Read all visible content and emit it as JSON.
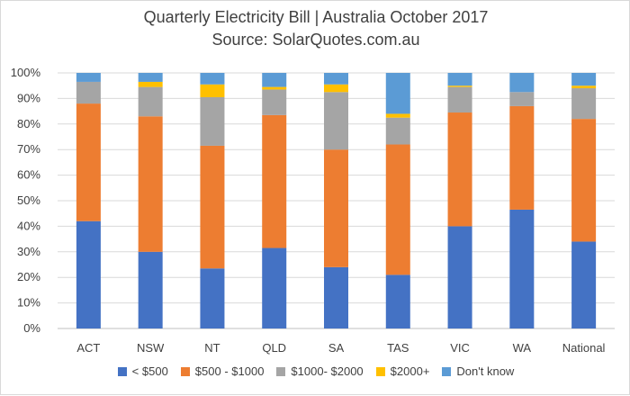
{
  "chart_data": {
    "type": "bar",
    "stacked": true,
    "title": "Quarterly Electricity Bill | Australia October 2017",
    "subtitle": "Source: SolarQuotes.com.au",
    "categories": [
      "ACT",
      "NSW",
      "NT",
      "QLD",
      "SA",
      "TAS",
      "VIC",
      "WA",
      "National"
    ],
    "ylim": [
      0,
      100
    ],
    "yticks": [
      "0%",
      "10%",
      "20%",
      "30%",
      "40%",
      "50%",
      "60%",
      "70%",
      "80%",
      "90%",
      "100%"
    ],
    "grid": true,
    "legend_position": "bottom",
    "series": [
      {
        "name": "< $500",
        "color": "#4472C4",
        "values": [
          42,
          30,
          23.5,
          31.5,
          24,
          21,
          40,
          46.5,
          34
        ]
      },
      {
        "name": "$500 - $1000",
        "color": "#ED7D31",
        "values": [
          46,
          53,
          48,
          52,
          46,
          51,
          44.5,
          40.5,
          48
        ]
      },
      {
        "name": "$1000- $2000",
        "color": "#A5A5A5",
        "values": [
          8.5,
          11.5,
          19,
          10,
          22.5,
          10.5,
          10,
          5.5,
          12
        ]
      },
      {
        "name": "$2000+",
        "color": "#FFC000",
        "values": [
          0,
          2,
          5,
          1,
          3,
          1.5,
          0.5,
          0,
          1
        ]
      },
      {
        "name": "Don't know",
        "color": "#5B9BD5",
        "values": [
          3.5,
          3.5,
          4.5,
          5.5,
          4.5,
          16,
          5,
          7.5,
          5
        ]
      }
    ]
  }
}
